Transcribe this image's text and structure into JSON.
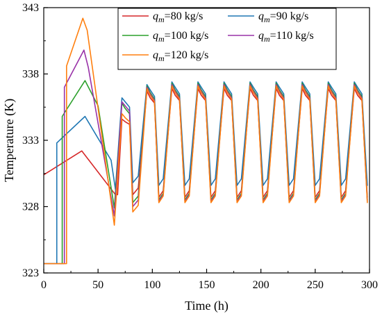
{
  "chart_data": {
    "type": "line",
    "title": "",
    "xlabel": "Time (h)",
    "ylabel": "Temperature (K)",
    "xlim": [
      0,
      300
    ],
    "ylim": [
      323,
      343
    ],
    "x_ticks": [
      0,
      50,
      100,
      150,
      200,
      250,
      300
    ],
    "y_ticks": [
      323,
      328,
      333,
      338,
      343
    ],
    "grid": false,
    "legend_position": "top-center",
    "colors": {
      "80": "#d62728",
      "90": "#1f77b4",
      "100": "#2ca02c",
      "110": "#9932a8",
      "120": "#ff7f0e"
    },
    "series": [
      {
        "name": "80 kg/s",
        "subscript_symbol": "m",
        "prefix": "q",
        "color": "#d62728",
        "points": [
          [
            0,
            330.4
          ],
          [
            35,
            332.2
          ],
          [
            66,
            328.9
          ],
          [
            68,
            328.9
          ],
          [
            72,
            334.6
          ],
          [
            75,
            334.4
          ],
          [
            79,
            334.2
          ],
          [
            82,
            328.9
          ],
          [
            87,
            329.4
          ],
          [
            95,
            336.7
          ],
          [
            98,
            336.2
          ],
          [
            102,
            335.8
          ],
          [
            106,
            328.7
          ],
          [
            110,
            329.2
          ],
          [
            118,
            336.9
          ],
          [
            121,
            336.4
          ],
          [
            125,
            336.0
          ],
          [
            130,
            328.7
          ],
          [
            134,
            329.2
          ],
          [
            142,
            336.9
          ],
          [
            145,
            336.4
          ],
          [
            149,
            336.0
          ],
          [
            154,
            328.7
          ],
          [
            158,
            329.2
          ],
          [
            166,
            336.9
          ],
          [
            169,
            336.4
          ],
          [
            173,
            336.0
          ],
          [
            178,
            328.7
          ],
          [
            182,
            329.2
          ],
          [
            190,
            336.9
          ],
          [
            193,
            336.4
          ],
          [
            197,
            336.0
          ],
          [
            202,
            328.7
          ],
          [
            206,
            329.2
          ],
          [
            214,
            336.9
          ],
          [
            217,
            336.4
          ],
          [
            221,
            336.0
          ],
          [
            226,
            328.7
          ],
          [
            230,
            329.2
          ],
          [
            238,
            336.9
          ],
          [
            241,
            336.4
          ],
          [
            245,
            336.0
          ],
          [
            250,
            328.7
          ],
          [
            254,
            329.2
          ],
          [
            262,
            336.9
          ],
          [
            265,
            336.4
          ],
          [
            269,
            336.0
          ],
          [
            274,
            328.7
          ],
          [
            278,
            329.2
          ],
          [
            286,
            336.9
          ],
          [
            289,
            336.4
          ],
          [
            293,
            336.0
          ],
          [
            298,
            328.7
          ]
        ]
      },
      {
        "name": "90 kg/s",
        "subscript_symbol": "m",
        "prefix": "q",
        "color": "#1f77b4",
        "points": [
          [
            0,
            323.7
          ],
          [
            12,
            323.7
          ],
          [
            12,
            332.8
          ],
          [
            38,
            334.8
          ],
          [
            62,
            331.5
          ],
          [
            66,
            329.3
          ],
          [
            72,
            336.2
          ],
          [
            75,
            335.9
          ],
          [
            79,
            335.5
          ],
          [
            82,
            329.8
          ],
          [
            87,
            330.3
          ],
          [
            95,
            337.2
          ],
          [
            98,
            336.8
          ],
          [
            102,
            336.3
          ],
          [
            106,
            329.6
          ],
          [
            110,
            330.1
          ],
          [
            118,
            337.4
          ],
          [
            121,
            337.0
          ],
          [
            125,
            336.5
          ],
          [
            130,
            329.6
          ],
          [
            134,
            330.1
          ],
          [
            142,
            337.4
          ],
          [
            145,
            337.0
          ],
          [
            149,
            336.5
          ],
          [
            154,
            329.6
          ],
          [
            158,
            330.1
          ],
          [
            166,
            337.4
          ],
          [
            169,
            337.0
          ],
          [
            173,
            336.5
          ],
          [
            178,
            329.6
          ],
          [
            182,
            330.1
          ],
          [
            190,
            337.4
          ],
          [
            193,
            337.0
          ],
          [
            197,
            336.5
          ],
          [
            202,
            329.6
          ],
          [
            206,
            330.1
          ],
          [
            214,
            337.4
          ],
          [
            217,
            337.0
          ],
          [
            221,
            336.5
          ],
          [
            226,
            329.6
          ],
          [
            230,
            330.1
          ],
          [
            238,
            337.4
          ],
          [
            241,
            337.0
          ],
          [
            245,
            336.5
          ],
          [
            250,
            329.6
          ],
          [
            254,
            330.1
          ],
          [
            262,
            337.4
          ],
          [
            265,
            337.0
          ],
          [
            269,
            336.5
          ],
          [
            274,
            329.6
          ],
          [
            278,
            330.1
          ],
          [
            286,
            337.4
          ],
          [
            289,
            337.0
          ],
          [
            293,
            336.5
          ],
          [
            298,
            329.6
          ]
        ]
      },
      {
        "name": "100 kg/s",
        "subscript_symbol": "m",
        "prefix": "q",
        "color": "#2ca02c",
        "points": [
          [
            0,
            323.7
          ],
          [
            17,
            323.7
          ],
          [
            17,
            334.8
          ],
          [
            38,
            337.5
          ],
          [
            50,
            335.6
          ],
          [
            65,
            327.9
          ],
          [
            72,
            335.8
          ],
          [
            75,
            335.4
          ],
          [
            79,
            335.0
          ],
          [
            82,
            328.3
          ],
          [
            87,
            328.8
          ],
          [
            95,
            337.1
          ],
          [
            98,
            336.6
          ],
          [
            102,
            336.1
          ],
          [
            106,
            328.5
          ],
          [
            110,
            329.0
          ],
          [
            118,
            337.3
          ],
          [
            121,
            336.8
          ],
          [
            125,
            336.3
          ],
          [
            130,
            328.5
          ],
          [
            134,
            329.0
          ],
          [
            142,
            337.3
          ],
          [
            145,
            336.8
          ],
          [
            149,
            336.3
          ],
          [
            154,
            328.5
          ],
          [
            158,
            329.0
          ],
          [
            166,
            337.3
          ],
          [
            169,
            336.8
          ],
          [
            173,
            336.3
          ],
          [
            178,
            328.5
          ],
          [
            182,
            329.0
          ],
          [
            190,
            337.3
          ],
          [
            193,
            336.8
          ],
          [
            197,
            336.3
          ],
          [
            202,
            328.5
          ],
          [
            206,
            329.0
          ],
          [
            214,
            337.3
          ],
          [
            217,
            336.8
          ],
          [
            221,
            336.3
          ],
          [
            226,
            328.5
          ],
          [
            230,
            329.0
          ],
          [
            238,
            337.3
          ],
          [
            241,
            336.8
          ],
          [
            245,
            336.3
          ],
          [
            250,
            328.5
          ],
          [
            254,
            329.0
          ],
          [
            262,
            337.3
          ],
          [
            265,
            336.8
          ],
          [
            269,
            336.3
          ],
          [
            274,
            328.5
          ],
          [
            278,
            329.0
          ],
          [
            286,
            337.3
          ],
          [
            289,
            336.8
          ],
          [
            293,
            336.3
          ],
          [
            298,
            328.5
          ]
        ]
      },
      {
        "name": "110 kg/s",
        "subscript_symbol": "m",
        "prefix": "q",
        "color": "#9932a8",
        "points": [
          [
            0,
            323.7
          ],
          [
            19,
            323.7
          ],
          [
            19,
            337.0
          ],
          [
            37,
            339.8
          ],
          [
            41,
            338.5
          ],
          [
            65,
            327.3
          ],
          [
            72,
            335.9
          ],
          [
            75,
            335.6
          ],
          [
            79,
            335.2
          ],
          [
            82,
            328.0
          ],
          [
            87,
            328.5
          ],
          [
            95,
            337.0
          ],
          [
            98,
            336.5
          ],
          [
            102,
            336.0
          ],
          [
            106,
            328.4
          ],
          [
            110,
            328.9
          ],
          [
            118,
            337.2
          ],
          [
            121,
            336.7
          ],
          [
            125,
            336.2
          ],
          [
            130,
            328.4
          ],
          [
            134,
            328.9
          ],
          [
            142,
            337.2
          ],
          [
            145,
            336.7
          ],
          [
            149,
            336.2
          ],
          [
            154,
            328.4
          ],
          [
            158,
            328.9
          ],
          [
            166,
            337.2
          ],
          [
            169,
            336.7
          ],
          [
            173,
            336.2
          ],
          [
            178,
            328.4
          ],
          [
            182,
            328.9
          ],
          [
            190,
            337.2
          ],
          [
            193,
            336.7
          ],
          [
            197,
            336.2
          ],
          [
            202,
            328.4
          ],
          [
            206,
            328.9
          ],
          [
            214,
            337.2
          ],
          [
            217,
            336.7
          ],
          [
            221,
            336.2
          ],
          [
            226,
            328.4
          ],
          [
            230,
            328.9
          ],
          [
            238,
            337.2
          ],
          [
            241,
            336.7
          ],
          [
            245,
            336.2
          ],
          [
            250,
            328.4
          ],
          [
            254,
            328.9
          ],
          [
            262,
            337.2
          ],
          [
            265,
            336.7
          ],
          [
            269,
            336.2
          ],
          [
            274,
            328.4
          ],
          [
            278,
            328.9
          ],
          [
            286,
            337.2
          ],
          [
            289,
            336.7
          ],
          [
            293,
            336.2
          ],
          [
            298,
            328.4
          ]
        ]
      },
      {
        "name": "120 kg/s",
        "subscript_symbol": "m",
        "prefix": "q",
        "color": "#ff7f0e",
        "points": [
          [
            0,
            323.7
          ],
          [
            21,
            323.7
          ],
          [
            21,
            338.6
          ],
          [
            36,
            342.2
          ],
          [
            40,
            341.3
          ],
          [
            65,
            326.6
          ],
          [
            72,
            335.0
          ],
          [
            75,
            334.7
          ],
          [
            79,
            334.4
          ],
          [
            82,
            327.6
          ],
          [
            87,
            328.1
          ],
          [
            95,
            336.9
          ],
          [
            98,
            336.4
          ],
          [
            102,
            335.9
          ],
          [
            106,
            328.3
          ],
          [
            110,
            328.8
          ],
          [
            118,
            337.1
          ],
          [
            121,
            336.6
          ],
          [
            125,
            336.1
          ],
          [
            130,
            328.3
          ],
          [
            134,
            328.8
          ],
          [
            142,
            337.1
          ],
          [
            145,
            336.6
          ],
          [
            149,
            336.1
          ],
          [
            154,
            328.3
          ],
          [
            158,
            328.8
          ],
          [
            166,
            337.1
          ],
          [
            169,
            336.6
          ],
          [
            173,
            336.1
          ],
          [
            178,
            328.3
          ],
          [
            182,
            328.8
          ],
          [
            190,
            337.1
          ],
          [
            193,
            336.6
          ],
          [
            197,
            336.1
          ],
          [
            202,
            328.3
          ],
          [
            206,
            328.8
          ],
          [
            214,
            337.1
          ],
          [
            217,
            336.6
          ],
          [
            221,
            336.1
          ],
          [
            226,
            328.3
          ],
          [
            230,
            328.8
          ],
          [
            238,
            337.1
          ],
          [
            241,
            336.6
          ],
          [
            245,
            336.1
          ],
          [
            250,
            328.3
          ],
          [
            254,
            328.8
          ],
          [
            262,
            337.1
          ],
          [
            265,
            336.6
          ],
          [
            269,
            336.1
          ],
          [
            274,
            328.3
          ],
          [
            278,
            328.8
          ],
          [
            286,
            337.1
          ],
          [
            289,
            336.6
          ],
          [
            293,
            336.1
          ],
          [
            298,
            328.3
          ]
        ]
      }
    ]
  }
}
